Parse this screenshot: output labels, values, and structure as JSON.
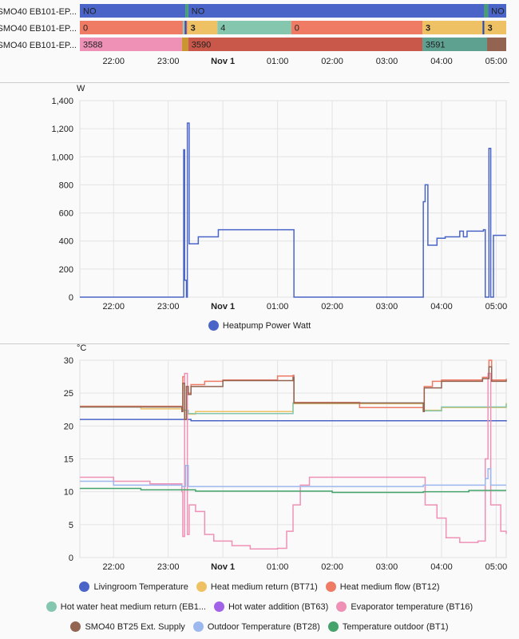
{
  "timeline": {
    "rows": [
      {
        "label": "SMO40 EB101-EP...",
        "segments": [
          [
            "21:23",
            "23:19",
            "NO",
            "#4a65c7"
          ],
          [
            "23:19",
            "23:22",
            "",
            "#43a36a"
          ],
          [
            "23:22",
            "04:47",
            "NO",
            "#4a65c7"
          ],
          [
            "04:47",
            "04:51",
            "",
            "#43a36a"
          ],
          [
            "04:51",
            "05:11",
            "NO",
            "#4a65c7"
          ]
        ]
      },
      {
        "label": "SMO40 EB101-EP...",
        "segments": [
          [
            "21:23",
            "23:16",
            "0",
            "#ef7b65"
          ],
          [
            "23:16",
            "23:18",
            "",
            "#9cc9b4"
          ],
          [
            "23:18",
            "23:20",
            "",
            "#3a4ea8"
          ],
          [
            "23:20",
            "23:21",
            "",
            "#ef7b65"
          ],
          [
            "23:21",
            "23:54",
            "3",
            "#eec264"
          ],
          [
            "23:54",
            "01:15",
            "4",
            "#84c7ae"
          ],
          [
            "01:15",
            "03:39",
            "0",
            "#ef7b65"
          ],
          [
            "03:39",
            "04:45",
            "3",
            "#eec264"
          ],
          [
            "04:45",
            "04:47",
            "",
            "#2c4aa0"
          ],
          [
            "04:47",
            "05:11",
            "3",
            "#eec264"
          ]
        ]
      },
      {
        "label": "SMO40 EB101-EP...",
        "segments": [
          [
            "21:23",
            "23:15",
            "3588",
            "#ef91b6"
          ],
          [
            "23:15",
            "23:22",
            "",
            "#c9962f"
          ],
          [
            "23:22",
            "03:39",
            "3590",
            "#c9584a"
          ],
          [
            "03:39",
            "04:50",
            "3591",
            "#5ea191"
          ],
          [
            "04:50",
            "05:11",
            "",
            "#926451"
          ]
        ]
      }
    ]
  },
  "x_ticks": [
    {
      "t": "22:00",
      "label": "22:00"
    },
    {
      "t": "23:00",
      "label": "23:00"
    },
    {
      "t": "24:00",
      "label": "Nov 1",
      "bold": true
    },
    {
      "t": "25:00",
      "label": "01:00"
    },
    {
      "t": "26:00",
      "label": "02:00"
    },
    {
      "t": "27:00",
      "label": "03:00"
    },
    {
      "t": "28:00",
      "label": "04:00"
    },
    {
      "t": "29:00",
      "label": "05:00"
    }
  ],
  "chart_data": [
    {
      "type": "line",
      "step": true,
      "ylabel": "W",
      "ylim": [
        0,
        1400
      ],
      "yticks": [
        "0",
        "200",
        "400",
        "600",
        "800",
        "1,000",
        "1,200",
        "1,400"
      ],
      "grid": true,
      "legend": "bottom",
      "series": [
        {
          "name": "Heatpump Power Watt",
          "color": "#4a65c7",
          "points": [
            [
              "21:23",
              0
            ],
            [
              "23:16",
              0
            ],
            [
              "23:17",
              1050
            ],
            [
              "23:18",
              120
            ],
            [
              "23:20",
              0
            ],
            [
              "23:21",
              1240
            ],
            [
              "23:23",
              380
            ],
            [
              "23:33",
              430
            ],
            [
              "23:55",
              480
            ],
            [
              "01:17",
              480
            ],
            [
              "01:18",
              0
            ],
            [
              "03:40",
              680
            ],
            [
              "03:42",
              800
            ],
            [
              "03:45",
              370
            ],
            [
              "03:55",
              420
            ],
            [
              "04:04",
              430
            ],
            [
              "04:20",
              470
            ],
            [
              "04:24",
              430
            ],
            [
              "04:28",
              470
            ],
            [
              "04:46",
              480
            ],
            [
              "04:48",
              0
            ],
            [
              "04:52",
              1060
            ],
            [
              "04:54",
              0
            ],
            [
              "04:57",
              440
            ],
            [
              "05:11",
              440
            ]
          ]
        }
      ]
    },
    {
      "type": "line",
      "step": true,
      "ylabel": "°C",
      "ylim": [
        0,
        30
      ],
      "yticks": [
        "0",
        "5",
        "10",
        "15",
        "20",
        "25",
        "30"
      ],
      "grid": true,
      "legend": "bottom",
      "series": [
        {
          "name": "Livingroom Temperature",
          "color": "#4a65c7",
          "points": [
            [
              "21:23",
              21.0
            ],
            [
              "23:20",
              21.0
            ],
            [
              "23:25",
              20.8
            ],
            [
              "05:11",
              20.7
            ]
          ]
        },
        {
          "name": "Heat medium return (BT71)",
          "color": "#eec264",
          "points": [
            [
              "21:23",
              23.0
            ],
            [
              "22:30",
              22.6
            ],
            [
              "23:15",
              22.4
            ],
            [
              "23:22",
              21.8
            ],
            [
              "23:30",
              22.2
            ],
            [
              "01:17",
              23.4
            ],
            [
              "03:40",
              22.4
            ],
            [
              "04:00",
              22.8
            ],
            [
              "05:11",
              23.5
            ]
          ]
        },
        {
          "name": "Heat medium flow (BT12)",
          "color": "#ef7b65",
          "points": [
            [
              "21:23",
              23.0
            ],
            [
              "23:15",
              22.3
            ],
            [
              "23:16",
              27.5
            ],
            [
              "23:18",
              21.0
            ],
            [
              "23:20",
              26.0
            ],
            [
              "23:22",
              25.0
            ],
            [
              "23:25",
              26.3
            ],
            [
              "23:40",
              26.8
            ],
            [
              "00:00",
              27.0
            ],
            [
              "01:00",
              27.6
            ],
            [
              "01:17",
              27.7
            ],
            [
              "01:18",
              23.6
            ],
            [
              "02:30",
              22.8
            ],
            [
              "03:40",
              22.3
            ],
            [
              "03:41",
              26.0
            ],
            [
              "03:50",
              26.8
            ],
            [
              "04:00",
              27.0
            ],
            [
              "04:45",
              27.4
            ],
            [
              "04:52",
              30.0
            ],
            [
              "04:55",
              27.0
            ],
            [
              "05:11",
              27.2
            ]
          ]
        },
        {
          "name": "Hot water heat medium return (EB1...",
          "color": "#84c7ae",
          "points": [
            [
              "21:23",
              22.9
            ],
            [
              "23:15",
              22.4
            ],
            [
              "23:22",
              21.9
            ],
            [
              "01:17",
              23.5
            ],
            [
              "03:40",
              22.3
            ],
            [
              "04:00",
              22.9
            ],
            [
              "05:11",
              23.4
            ]
          ]
        },
        {
          "name": "Hot water addition (BT63)",
          "color": "#a162e8",
          "points": []
        },
        {
          "name": "Evaporator temperature (BT16)",
          "color": "#ef91b6",
          "points": [
            [
              "21:23",
              12.2
            ],
            [
              "22:00",
              11.6
            ],
            [
              "22:40",
              11.2
            ],
            [
              "23:15",
              10.0
            ],
            [
              "23:16",
              3.2
            ],
            [
              "23:18",
              28.0
            ],
            [
              "23:21",
              3.5
            ],
            [
              "23:23",
              8.0
            ],
            [
              "23:30",
              7.0
            ],
            [
              "23:40",
              3.5
            ],
            [
              "23:50",
              2.5
            ],
            [
              "00:10",
              1.8
            ],
            [
              "00:30",
              1.3
            ],
            [
              "01:00",
              1.4
            ],
            [
              "01:10",
              4.0
            ],
            [
              "01:17",
              8.0
            ],
            [
              "01:25",
              11.0
            ],
            [
              "01:35",
              12.2
            ],
            [
              "03:40",
              12.2
            ],
            [
              "03:42",
              8.0
            ],
            [
              "03:55",
              6.0
            ],
            [
              "04:05",
              3.0
            ],
            [
              "04:20",
              2.3
            ],
            [
              "04:40",
              2.5
            ],
            [
              "04:48",
              15.0
            ],
            [
              "04:51",
              28.0
            ],
            [
              "04:54",
              8.0
            ],
            [
              "05:05",
              4.0
            ],
            [
              "05:11",
              3.6
            ]
          ]
        },
        {
          "name": "SMO40 BT25 Ext. Supply",
          "color": "#926451",
          "points": [
            [
              "21:23",
              22.9
            ],
            [
              "23:15",
              22.2
            ],
            [
              "23:16",
              26.5
            ],
            [
              "23:18",
              21.0
            ],
            [
              "23:20",
              26.0
            ],
            [
              "23:22",
              24.8
            ],
            [
              "23:25",
              26.0
            ],
            [
              "00:00",
              26.9
            ],
            [
              "01:17",
              27.4
            ],
            [
              "01:18",
              23.5
            ],
            [
              "03:40",
              22.2
            ],
            [
              "03:41",
              25.8
            ],
            [
              "04:00",
              26.8
            ],
            [
              "04:45",
              27.2
            ],
            [
              "04:52",
              29.0
            ],
            [
              "04:55",
              26.8
            ],
            [
              "05:11",
              27.0
            ]
          ]
        },
        {
          "name": "Outdoor Temperature (BT28)",
          "color": "#9db8ee",
          "points": [
            [
              "21:23",
              11.6
            ],
            [
              "22:00",
              11.0
            ],
            [
              "23:15",
              10.8
            ],
            [
              "23:19",
              14.0
            ],
            [
              "23:22",
              10.8
            ],
            [
              "01:30",
              10.8
            ],
            [
              "03:40",
              11.0
            ],
            [
              "04:48",
              12.0
            ],
            [
              "04:51",
              13.5
            ],
            [
              "04:54",
              11.0
            ],
            [
              "05:11",
              11.0
            ]
          ]
        },
        {
          "name": "Temperature outdoor (BT1)",
          "color": "#43a36a",
          "points": [
            [
              "21:23",
              10.5
            ],
            [
              "22:30",
              10.3
            ],
            [
              "23:30",
              10.1
            ],
            [
              "02:00",
              9.9
            ],
            [
              "03:40",
              10.0
            ],
            [
              "04:30",
              10.2
            ],
            [
              "05:11",
              10.2
            ]
          ]
        }
      ]
    }
  ]
}
